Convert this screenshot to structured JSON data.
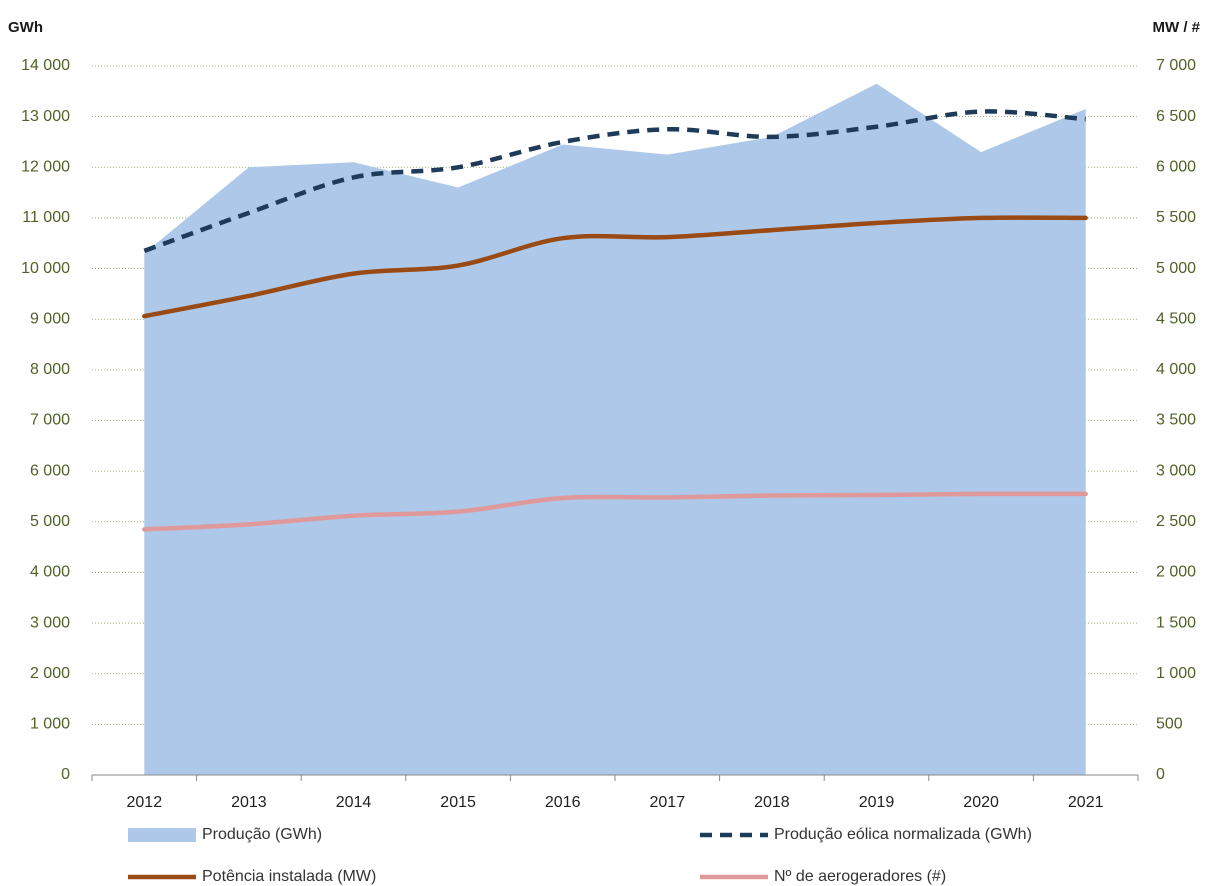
{
  "chart_data": {
    "type": "area-line",
    "y_label": "GWh",
    "y2_label": "MW / #",
    "categories": [
      "2012",
      "2013",
      "2014",
      "2015",
      "2016",
      "2017",
      "2018",
      "2019",
      "2020",
      "2021"
    ],
    "series": [
      {
        "name": "Produção (GWh)",
        "type": "area",
        "color": "#adc8e8",
        "values": [
          10300,
          12000,
          12100,
          11600,
          12450,
          12250,
          12600,
          13650,
          12300,
          13150
        ]
      },
      {
        "name": "Produção eólica normalizada (GWh)",
        "type": "dashed",
        "color": "#1f3b5a",
        "values": [
          10350,
          11100,
          11800,
          12000,
          12500,
          12750,
          12600,
          12800,
          13100,
          12950
        ]
      },
      {
        "name": "Potência instalada (MW)",
        "type": "line",
        "axis": "y2",
        "color": "#9a4a14",
        "values": [
          4530,
          4730,
          4950,
          5030,
          5300,
          5310,
          5380,
          5450,
          5500,
          5500
        ]
      },
      {
        "name": "Nº de aerogeradores (#)",
        "type": "line",
        "axis": "y2",
        "color": "#e0999a",
        "values": [
          2425,
          2475,
          2560,
          2600,
          2735,
          2740,
          2760,
          2765,
          2775,
          2775
        ]
      }
    ],
    "ylim": [
      0,
      14000
    ],
    "yticks": [
      0,
      {
        "value": 1000,
        "label": "1 000"
      },
      {
        "value": 2000,
        "label": "2 000"
      },
      {
        "value": 3000,
        "label": "3 000"
      },
      {
        "value": 4000,
        "label": "4 000"
      },
      {
        "value": 5000,
        "label": "5 000"
      },
      {
        "value": 6000,
        "label": "6 000"
      },
      {
        "value": 7000,
        "label": "7 000"
      },
      {
        "value": 8000,
        "label": "8 000"
      },
      {
        "value": 9000,
        "label": "9 000"
      },
      {
        "value": 10000,
        "label": "10 000"
      },
      {
        "value": 11000,
        "label": "11 000"
      },
      {
        "value": 12000,
        "label": "12 000"
      },
      {
        "value": 13000,
        "label": "13 000"
      },
      {
        "value": 14000,
        "label": "14 000"
      }
    ],
    "y2lim": [
      0,
      7000
    ],
    "y2ticks": [
      0,
      500,
      {
        "value": 1000,
        "label": "1 000"
      },
      {
        "value": 1500,
        "label": "1 500"
      },
      {
        "value": 2000,
        "label": "2 000"
      },
      {
        "value": 2500,
        "label": "2 500"
      },
      {
        "value": 3000,
        "label": "3 000"
      },
      {
        "value": 3500,
        "label": "3 500"
      },
      {
        "value": 4000,
        "label": "4 000"
      },
      {
        "value": 4500,
        "label": "4 500"
      },
      {
        "value": 5000,
        "label": "5 000"
      },
      {
        "value": 5500,
        "label": "5 500"
      },
      {
        "value": 6000,
        "label": "6 000"
      },
      {
        "value": 6500,
        "label": "6 500"
      },
      {
        "value": 7000,
        "label": "7 000"
      }
    ],
    "grid": true
  }
}
